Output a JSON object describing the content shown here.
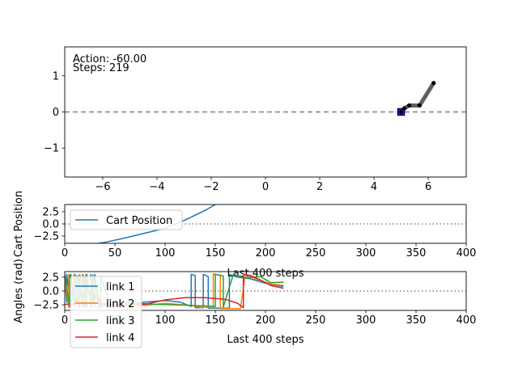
{
  "sim": {
    "action_label": "Action: -60.00",
    "steps_label": "Steps: 219",
    "cart_x": 5.0,
    "link_points": [
      [
        5.0,
        0.0
      ],
      [
        5.12,
        0.1
      ],
      [
        5.3,
        0.18
      ],
      [
        5.68,
        0.18
      ],
      [
        6.2,
        0.8
      ]
    ],
    "colors": {
      "cart_edge": "#000080",
      "cart_fill": "#1f3fbf",
      "links": "#606060",
      "joints": "#000000",
      "ground": "#7f7f7f"
    }
  },
  "chart_data": [
    {
      "type": "line",
      "xlim": [
        -7.4,
        7.4
      ],
      "ylim": [
        -1.8,
        1.8
      ],
      "xticks": [
        -6,
        -4,
        -2,
        0,
        2,
        4,
        6
      ],
      "xtick_labels": [
        "−6",
        "−4",
        "−2",
        "0",
        "2",
        "4",
        "6"
      ],
      "yticks": [
        -1,
        0,
        1
      ],
      "ytick_labels": [
        "−1",
        "0",
        "1"
      ],
      "grid": false
    },
    {
      "type": "line",
      "ylabel": "Cart Position",
      "xlim": [
        0,
        400
      ],
      "ylim": [
        -4,
        4
      ],
      "xticks": [
        0,
        50,
        100,
        150,
        200,
        250,
        300,
        350,
        400
      ],
      "xtick_labels": [
        "0",
        "50",
        "100",
        "150",
        "200",
        "250",
        "300",
        "350",
        "400"
      ],
      "yticks": [
        -2.5,
        0,
        2.5
      ],
      "ytick_labels": [
        "−2.5",
        "0.0",
        "2.5"
      ],
      "legend": "upper-left",
      "series": [
        {
          "name": "Cart Position",
          "color": "#1f77b4",
          "x": [
            0,
            20,
            40,
            60,
            80,
            100,
            120,
            140,
            150
          ],
          "y": [
            -5.0,
            -4.5,
            -3.8,
            -2.9,
            -1.9,
            -0.9,
            0.8,
            2.8,
            4.0
          ]
        }
      ]
    },
    {
      "type": "line",
      "xlabel": "Last 400 steps",
      "ylabel": "Angles (rad)",
      "xlim": [
        0,
        400
      ],
      "ylim": [
        -3.5,
        3.5
      ],
      "xticks": [
        0,
        50,
        100,
        150,
        200,
        250,
        300,
        350,
        400
      ],
      "xtick_labels": [
        "0",
        "50",
        "100",
        "150",
        "200",
        "250",
        "300",
        "350",
        "400"
      ],
      "yticks": [
        -2.5,
        0,
        2.5
      ],
      "ytick_labels": [
        "−2.5",
        "0.0",
        "2.5"
      ],
      "legend": "lower-left",
      "series": [
        {
          "name": "link 1",
          "color": "#1f77b4",
          "x": [
            0,
            2,
            2,
            6,
            6,
            10,
            10,
            14,
            14,
            18,
            18,
            22,
            22,
            26,
            26,
            30,
            30,
            34,
            40,
            60,
            80,
            100,
            115,
            126,
            126,
            130,
            130,
            138,
            138,
            143,
            143,
            150,
            160,
            164,
            164,
            172,
            185,
            200,
            218
          ],
          "y": [
            3.0,
            -2.0,
            3.0,
            -2.5,
            3.0,
            -2.8,
            3.0,
            -3.0,
            2.8,
            -3.0,
            3.0,
            -2.9,
            3.0,
            -3.0,
            3.0,
            -2.8,
            3.0,
            -3.0,
            -2.6,
            -2.4,
            -2.0,
            -1.7,
            -2.0,
            -2.8,
            3.0,
            2.8,
            -3.0,
            -3.0,
            3.0,
            2.6,
            -3.1,
            -3.1,
            -3.1,
            -3.1,
            3.0,
            2.5,
            2.2,
            1.4,
            0.8
          ]
        },
        {
          "name": "link 2",
          "color": "#ff7f0e",
          "x": [
            0,
            4,
            4,
            9,
            9,
            15,
            15,
            21,
            21,
            27,
            27,
            33,
            40,
            60,
            80,
            100,
            125,
            135,
            148,
            148,
            155,
            155,
            165,
            175,
            180,
            190,
            205,
            218
          ],
          "y": [
            2.5,
            -3.0,
            3.0,
            -2.5,
            3.0,
            -3.0,
            3.0,
            -2.6,
            3.0,
            -3.0,
            2.6,
            -2.4,
            -2.5,
            -2.3,
            -2.6,
            -2.2,
            -2.6,
            -2.9,
            -3.0,
            3.1,
            2.8,
            -3.2,
            -3.2,
            -3.2,
            3.0,
            2.2,
            1.3,
            1.0
          ]
        },
        {
          "name": "link 3",
          "color": "#2ca02c",
          "x": [
            0,
            5,
            5,
            12,
            12,
            20,
            20,
            28,
            28,
            36,
            36,
            45,
            55,
            70,
            90,
            110,
            125,
            140,
            150,
            150,
            158,
            158,
            168,
            180,
            195,
            205,
            218
          ],
          "y": [
            3.0,
            -2.8,
            2.9,
            -2.4,
            2.8,
            -2.9,
            2.7,
            -2.3,
            2.9,
            -2.8,
            2.5,
            -2.2,
            -2.0,
            -2.2,
            -2.4,
            -2.5,
            -2.6,
            -2.7,
            -2.8,
            3.0,
            2.7,
            -2.9,
            3.0,
            2.4,
            2.6,
            1.5,
            1.6
          ]
        },
        {
          "name": "link 4",
          "color": "#d62728",
          "x": [
            0,
            30,
            60,
            80,
            100,
            120,
            140,
            160,
            172,
            178,
            178,
            185,
            195,
            205,
            218
          ],
          "y": [
            -2.4,
            -2.2,
            -2.6,
            -2.4,
            -1.6,
            -1.2,
            -1.2,
            -1.5,
            -2.2,
            -3.0,
            3.0,
            2.8,
            2.0,
            1.0,
            0.5
          ]
        }
      ]
    }
  ],
  "legends": {
    "position": [
      "Cart Position"
    ],
    "angles": [
      "link 1",
      "link 2",
      "link 3",
      "link 4"
    ]
  }
}
